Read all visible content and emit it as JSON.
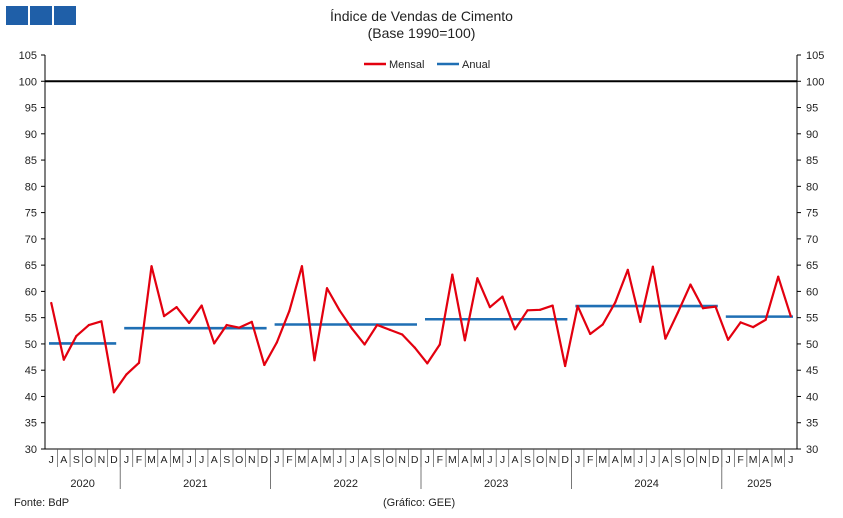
{
  "header": {
    "title": "Índice de Vendas de Cimento",
    "subtitle": "(Base 1990=100)"
  },
  "footer": {
    "source": "Fonte: BdP",
    "credit": "(Gráfico: GEE)"
  },
  "colors": {
    "mensal": "#e3000f",
    "anual": "#1f6fb4",
    "reference": "#000000",
    "logo": "#1f5fa8"
  },
  "chart_data": {
    "type": "line",
    "title": "Índice de Vendas de Cimento",
    "subtitle": "(Base 1990=100)",
    "ylim": [
      30,
      105
    ],
    "y_ticks": [
      30,
      35,
      40,
      45,
      50,
      55,
      60,
      65,
      70,
      75,
      80,
      85,
      90,
      95,
      100,
      105
    ],
    "legend": {
      "placement": "top-center",
      "entries": [
        "Mensal",
        "Anual"
      ]
    },
    "grid": false,
    "reference_line": 100,
    "month_labels": [
      "J",
      "A",
      "S",
      "O",
      "N",
      "D",
      "J",
      "F",
      "M",
      "A",
      "M",
      "J",
      "J",
      "A",
      "S",
      "O",
      "N",
      "D",
      "J",
      "F",
      "M",
      "A",
      "M",
      "J",
      "J",
      "A",
      "S",
      "O",
      "N",
      "D",
      "J",
      "F",
      "M",
      "A",
      "M",
      "J",
      "J",
      "A",
      "S",
      "O",
      "N",
      "D",
      "J",
      "F",
      "M",
      "A",
      "M",
      "J",
      "J",
      "A",
      "S",
      "O",
      "N",
      "D",
      "J",
      "F",
      "M",
      "A",
      "M",
      "J"
    ],
    "years": [
      {
        "label": "2020",
        "start": 0,
        "count": 6
      },
      {
        "label": "2021",
        "start": 6,
        "count": 12
      },
      {
        "label": "2022",
        "start": 18,
        "count": 12
      },
      {
        "label": "2023",
        "start": 30,
        "count": 12
      },
      {
        "label": "2024",
        "start": 42,
        "count": 12
      },
      {
        "label": "2025",
        "start": 54,
        "count": 6
      }
    ],
    "series": [
      {
        "name": "Mensal",
        "values": [
          57.8,
          47.0,
          51.5,
          53.6,
          54.3,
          40.8,
          44.2,
          46.4,
          64.8,
          55.3,
          57.0,
          54.0,
          57.3,
          50.1,
          53.6,
          53.1,
          54.2,
          46.0,
          50.3,
          56.3,
          64.8,
          46.9,
          60.6,
          56.4,
          52.9,
          49.9,
          53.6,
          52.7,
          51.8,
          49.3,
          46.3,
          49.9,
          63.2,
          50.7,
          62.5,
          57.0,
          59.0,
          52.8,
          56.4,
          56.5,
          57.3,
          45.8,
          57.2,
          51.9,
          53.7,
          57.9,
          64.1,
          54.2,
          64.7,
          51.0,
          56.0,
          61.3,
          56.8,
          57.1,
          50.8,
          54.1,
          53.2,
          54.6,
          62.8,
          55.3
        ]
      },
      {
        "name": "Anual",
        "segments": [
          {
            "year": "2020",
            "value": 50.1
          },
          {
            "year": "2021",
            "value": 53.0
          },
          {
            "year": "2022",
            "value": 53.7
          },
          {
            "year": "2023",
            "value": 54.7
          },
          {
            "year": "2024",
            "value": 57.2
          },
          {
            "year": "2025",
            "value": 55.2
          }
        ]
      }
    ]
  }
}
